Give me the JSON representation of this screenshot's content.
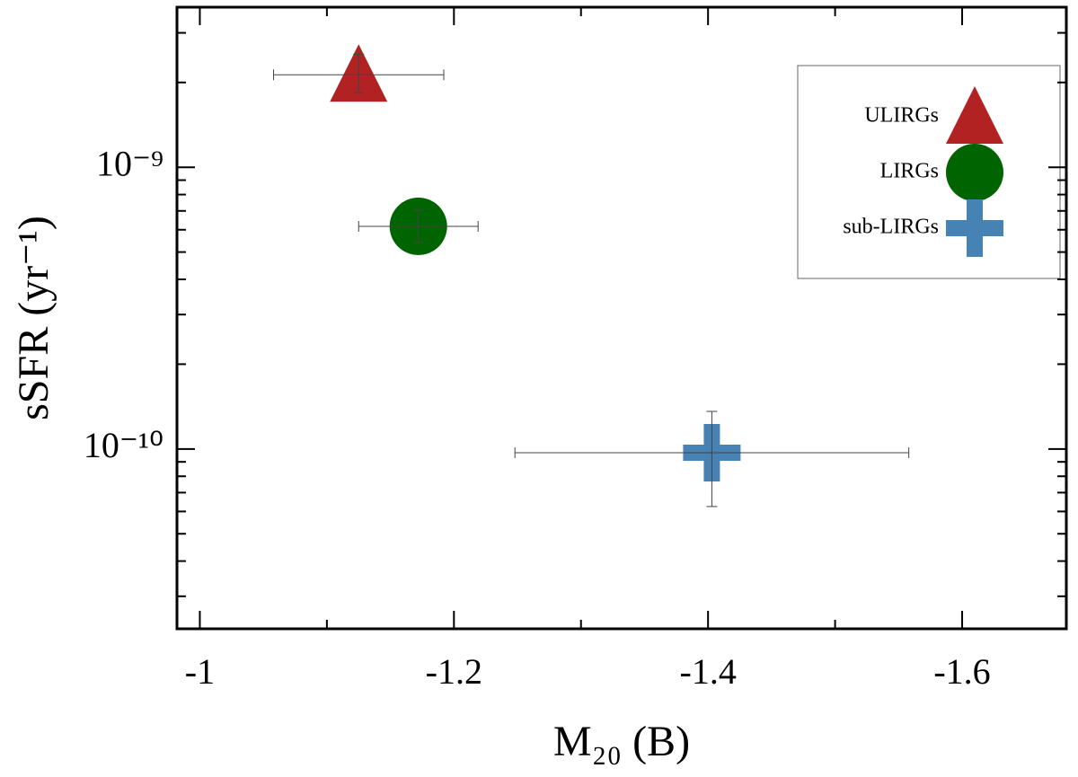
{
  "chart_data": {
    "type": "scatter",
    "x_label": "M₂₀ (B)",
    "y_label": "sSFR (yr⁻¹)",
    "xlim": [
      -0.982,
      -1.682
    ],
    "xticks": [
      -1.0,
      -1.2,
      -1.4,
      -1.6
    ],
    "xminor": [
      -1.1,
      -1.3,
      -1.5
    ],
    "ylim": [
      2.3e-11,
      3.7e-09
    ],
    "log_y": true,
    "yticks": [
      {
        "value": 1e-09,
        "label": "10⁻⁹"
      },
      {
        "value": 1e-10,
        "label": "10⁻¹⁰"
      }
    ],
    "yminor": [
      3e-11,
      4e-11,
      5e-11,
      6e-11,
      7e-11,
      8e-11,
      9e-11,
      2e-10,
      3e-10,
      4e-10,
      5e-10,
      6e-10,
      7e-10,
      8e-10,
      9e-10,
      2e-09,
      3e-09
    ],
    "legend": "upper right",
    "series": [
      {
        "name": "ULIRGs",
        "color": "#b22222",
        "marker": "triangle",
        "x": [
          -1.125
        ],
        "values": [
          2.13e-09
        ],
        "xerr": [
          0.067
        ],
        "yerr": [
          [
            2.9e-10,
            3.9e-10
          ]
        ]
      },
      {
        "name": "LIRGs",
        "color": "#006400",
        "marker": "circle",
        "x": [
          -1.172
        ],
        "values": [
          6.17e-10
        ],
        "xerr": [
          0.047
        ],
        "yerr": [
          [
            7.7e-11,
            8.7e-11
          ]
        ]
      },
      {
        "name": "sub-LIRGs",
        "color": "#4682b4",
        "marker": "plus",
        "x": [
          -1.403
        ],
        "values": [
          9.7e-11
        ],
        "xerr": [
          0.155
        ],
        "yerr": [
          [
            3.45e-11,
            3.9e-11
          ]
        ]
      }
    ]
  }
}
